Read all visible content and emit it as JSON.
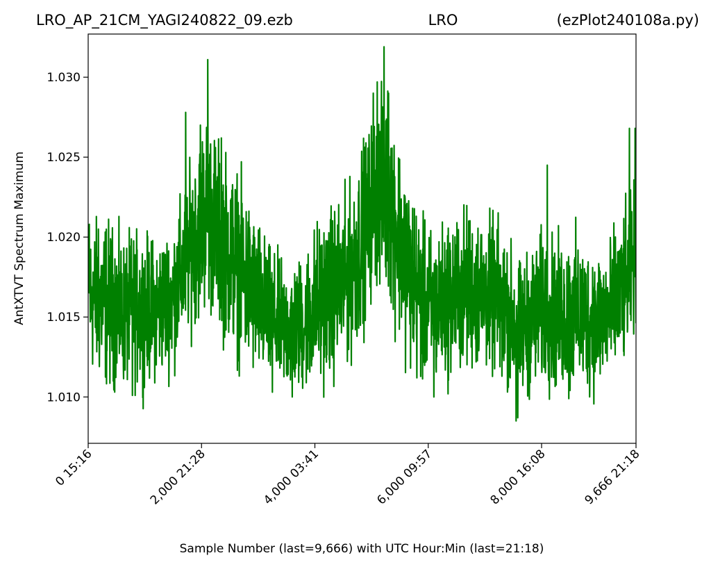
{
  "chart_data": {
    "type": "line",
    "title_left": "LRO_AP_21CM_YAGI240822_09.ezb",
    "title_center": "LRO",
    "title_right": "(ezPlot240108a.py)",
    "xlabel": "Sample Number (last=9,666) with UTC Hour:Min (last=21:18)",
    "ylabel": "AntXTVT Spectrum Maximum",
    "xlim": [
      0,
      9666
    ],
    "ylim": [
      1.0071,
      1.0327
    ],
    "grid": false,
    "line_color": "#008000",
    "x_ticks": [
      {
        "value": 0,
        "label": "0  15:16"
      },
      {
        "value": 2000,
        "label": "2,000  21:28"
      },
      {
        "value": 4000,
        "label": "4,000  03:41"
      },
      {
        "value": 6000,
        "label": "6,000  09:57"
      },
      {
        "value": 8000,
        "label": "8,000  16:08"
      },
      {
        "value": 9666,
        "label": "9,666  21:18"
      }
    ],
    "y_ticks": [
      {
        "value": 1.01,
        "label": "1.010"
      },
      {
        "value": 1.015,
        "label": "1.015"
      },
      {
        "value": 1.02,
        "label": "1.020"
      },
      {
        "value": 1.025,
        "label": "1.025"
      },
      {
        "value": 1.03,
        "label": "1.030"
      }
    ],
    "series": [
      {
        "x": [
          0,
          300,
          600,
          900,
          1200,
          1500,
          1800,
          2000,
          2100,
          2300,
          2600,
          2900,
          3200,
          3500,
          3800,
          4000,
          4300,
          4600,
          4800,
          4950,
          5100,
          5300,
          5500,
          5700,
          5900,
          6100,
          6400,
          6700,
          7000,
          7300,
          7600,
          7800,
          8000,
          8300,
          8600,
          8900,
          9200,
          9500,
          9666
        ],
        "upper": [
          1.0205,
          1.021,
          1.0195,
          1.02,
          1.0195,
          1.0205,
          1.024,
          1.0265,
          1.0275,
          1.0255,
          1.024,
          1.0215,
          1.019,
          1.018,
          1.0185,
          1.0205,
          1.0215,
          1.0225,
          1.025,
          1.0265,
          1.028,
          1.029,
          1.0255,
          1.023,
          1.0205,
          1.02,
          1.021,
          1.0215,
          1.021,
          1.0205,
          1.018,
          1.019,
          1.02,
          1.0195,
          1.02,
          1.019,
          1.0195,
          1.0215,
          1.0235
        ],
        "lower": [
          1.012,
          1.011,
          1.011,
          1.011,
          1.0115,
          1.012,
          1.0145,
          1.0155,
          1.016,
          1.0145,
          1.013,
          1.0115,
          1.011,
          1.0105,
          1.0105,
          1.011,
          1.0115,
          1.0125,
          1.014,
          1.016,
          1.0175,
          1.0165,
          1.014,
          1.012,
          1.011,
          1.011,
          1.0115,
          1.012,
          1.012,
          1.0115,
          1.01,
          1.0105,
          1.011,
          1.0105,
          1.0105,
          1.0105,
          1.011,
          1.0125,
          1.015
        ]
      }
    ],
    "peaks": [
      {
        "x": 20,
        "y": 1.0208
      },
      {
        "x": 180,
        "y": 1.0205
      },
      {
        "x": 1720,
        "y": 1.0278
      },
      {
        "x": 1980,
        "y": 1.027
      },
      {
        "x": 2110,
        "y": 1.0311
      },
      {
        "x": 2350,
        "y": 1.0262
      },
      {
        "x": 5030,
        "y": 1.029
      },
      {
        "x": 5100,
        "y": 1.0297
      },
      {
        "x": 5220,
        "y": 1.0319
      },
      {
        "x": 5300,
        "y": 1.029
      },
      {
        "x": 8100,
        "y": 1.0245
      },
      {
        "x": 9550,
        "y": 1.0268
      },
      {
        "x": 9650,
        "y": 1.0268
      }
    ],
    "troughs": [
      {
        "x": 780,
        "y": 1.0101
      },
      {
        "x": 3250,
        "y": 1.0103
      },
      {
        "x": 3600,
        "y": 1.01
      },
      {
        "x": 6100,
        "y": 1.01
      },
      {
        "x": 7300,
        "y": 1.0113
      },
      {
        "x": 7550,
        "y": 1.0085
      },
      {
        "x": 7580,
        "y": 1.0087
      },
      {
        "x": 8480,
        "y": 1.0099
      }
    ]
  }
}
